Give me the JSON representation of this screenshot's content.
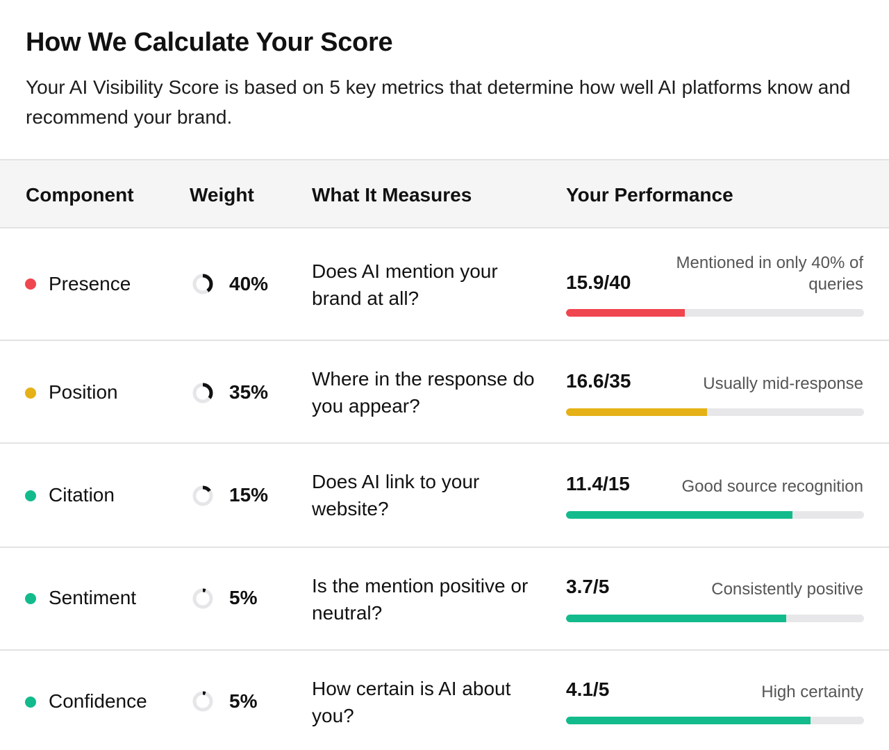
{
  "header": {
    "title": "How We Calculate Your Score",
    "subtitle": "Your AI Visibility Score is based on 5 key metrics that determine how well AI platforms know and recommend your brand."
  },
  "table": {
    "columns": [
      "Component",
      "Weight",
      "What It Measures",
      "Your Performance"
    ],
    "rows": [
      {
        "component": "Presence",
        "dot_color": "#f0464f",
        "weight": "40%",
        "weight_fraction": 0.4,
        "measures": "Does AI mention your brand at all?",
        "score": "15.9/40",
        "score_value": 15.9,
        "score_max": 40,
        "note": "Mentioned in only 40% of queries",
        "bar_color": "#f0464f"
      },
      {
        "component": "Position",
        "dot_color": "#e5b117",
        "weight": "35%",
        "weight_fraction": 0.35,
        "measures": "Where in the response do you appear?",
        "score": "16.6/35",
        "score_value": 16.6,
        "score_max": 35,
        "note": "Usually mid-response",
        "bar_color": "#e5b117"
      },
      {
        "component": "Citation",
        "dot_color": "#13bb8c",
        "weight": "15%",
        "weight_fraction": 0.15,
        "measures": "Does AI link to your website?",
        "score": "11.4/15",
        "score_value": 11.4,
        "score_max": 15,
        "note": "Good source recognition",
        "bar_color": "#13bb8c"
      },
      {
        "component": "Sentiment",
        "dot_color": "#13bb8c",
        "weight": "5%",
        "weight_fraction": 0.05,
        "measures": "Is the mention positive or neutral?",
        "score": "3.7/5",
        "score_value": 3.7,
        "score_max": 5,
        "note": "Consistently positive",
        "bar_color": "#13bb8c"
      },
      {
        "component": "Confidence",
        "dot_color": "#13bb8c",
        "weight": "5%",
        "weight_fraction": 0.05,
        "measures": "How certain is AI about you?",
        "score": "4.1/5",
        "score_value": 4.1,
        "score_max": 5,
        "note": "High certainty",
        "bar_color": "#13bb8c"
      }
    ]
  }
}
